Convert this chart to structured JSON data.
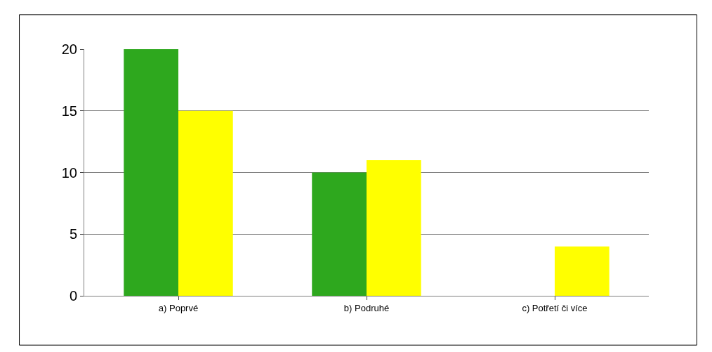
{
  "chart_data": {
    "type": "bar",
    "categories": [
      "a) Poprvé",
      "b) Podruhé",
      "c) Potřetí či více"
    ],
    "series": [
      {
        "color": "#2ea81e",
        "values": [
          20,
          10,
          0
        ]
      },
      {
        "color": "#ffff00",
        "values": [
          15,
          11,
          4
        ]
      }
    ],
    "ylim": [
      0,
      20
    ],
    "yticks": [
      0,
      5,
      10,
      15,
      20
    ],
    "grid": "y"
  }
}
